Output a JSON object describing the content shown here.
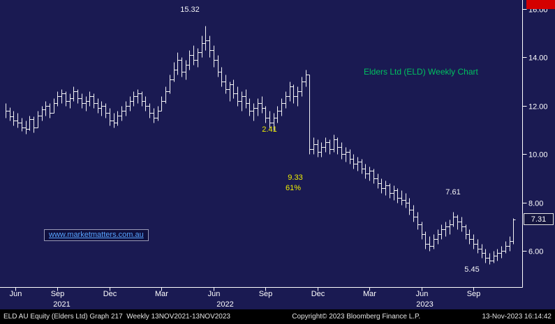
{
  "status_bar": {
    "left_text": "ELD AU Equity (Elders Ltd) Graph 217  Weekly 13NOV2021-13NOV2023",
    "copyright": "Copyright© 2023 Bloomberg Finance L.P.",
    "timestamp": "13-Nov-2023 16:14:42"
  },
  "colors": {
    "background": "#1a1a52",
    "bar_white": "#f2f2f4",
    "axis_white": "#ffffff",
    "annotation_yellow": "#f0f000",
    "title_green": "#00c060",
    "link_blue": "#58a4ff",
    "corner_red": "#d40000",
    "status_bar_black": "#000000"
  },
  "chart_data": {
    "type": "ohlc_bar",
    "title": "Elders Ltd (ELD) Weekly Chart",
    "grid": false,
    "ylim": [
      5.0,
      16.4
    ],
    "frequency": "weekly",
    "date_range": "13NOV2021-13NOV2023",
    "y_axis": {
      "values": [
        16,
        14,
        12,
        10,
        8,
        6
      ],
      "labels": [
        "16.00",
        "14.00",
        "12.00",
        "10.00",
        "8.00",
        "6.00"
      ]
    },
    "x_axis": {
      "months": [
        {
          "label": "Jun",
          "week": 2.4
        },
        {
          "label": "Sep",
          "week": 13
        },
        {
          "label": "Dec",
          "week": 26
        },
        {
          "label": "Mar",
          "week": 39
        },
        {
          "label": "Jun",
          "week": 52
        },
        {
          "label": "Sep",
          "week": 65
        },
        {
          "label": "Dec",
          "week": 78
        },
        {
          "label": "Mar",
          "week": 91
        },
        {
          "label": "Jun",
          "week": 104
        },
        {
          "label": "Sep",
          "week": 117
        }
      ],
      "years": [
        {
          "label": "2021",
          "week": 14
        },
        {
          "label": "2022",
          "week": 54.8
        },
        {
          "label": "2023",
          "week": 104.7
        }
      ]
    },
    "point_labels": {
      "peak_high": "15.32",
      "drop_amount": "2.41",
      "decline_amount": "9.33",
      "decline_percent": "61%",
      "swing_high": "7.61",
      "trough_low": "5.45",
      "last_price": "7.31"
    },
    "watermark": "www.marketmatters.com.au",
    "bars_format": [
      "high",
      "low",
      "close"
    ],
    "bars": [
      [
        12.1,
        11.5,
        11.8
      ],
      [
        11.95,
        11.4,
        11.55
      ],
      [
        11.8,
        11.2,
        11.4
      ],
      [
        11.7,
        11.1,
        11.3
      ],
      [
        11.5,
        10.95,
        11.1
      ],
      [
        11.4,
        10.85,
        11.05
      ],
      [
        11.6,
        11.0,
        11.45
      ],
      [
        11.55,
        10.9,
        11.1
      ],
      [
        11.8,
        11.1,
        11.6
      ],
      [
        12.0,
        11.4,
        11.85
      ],
      [
        12.2,
        11.6,
        12.0
      ],
      [
        12.1,
        11.5,
        11.7
      ],
      [
        12.3,
        11.7,
        12.1
      ],
      [
        12.6,
        12.0,
        12.4
      ],
      [
        12.7,
        12.1,
        12.5
      ],
      [
        12.6,
        12.0,
        12.2
      ],
      [
        12.5,
        11.9,
        12.3
      ],
      [
        12.8,
        12.2,
        12.6
      ],
      [
        12.7,
        12.1,
        12.3
      ],
      [
        12.5,
        11.9,
        12.1
      ],
      [
        12.4,
        11.8,
        12.2
      ],
      [
        12.6,
        12.0,
        12.4
      ],
      [
        12.5,
        11.9,
        12.1
      ],
      [
        12.3,
        11.7,
        11.9
      ],
      [
        12.2,
        11.6,
        12.0
      ],
      [
        12.1,
        11.5,
        11.7
      ],
      [
        11.9,
        11.2,
        11.4
      ],
      [
        11.7,
        11.1,
        11.3
      ],
      [
        11.8,
        11.2,
        11.6
      ],
      [
        12.0,
        11.4,
        11.8
      ],
      [
        12.2,
        11.6,
        12.0
      ],
      [
        12.4,
        11.8,
        12.2
      ],
      [
        12.6,
        12.0,
        12.4
      ],
      [
        12.7,
        12.1,
        12.5
      ],
      [
        12.6,
        12.0,
        12.2
      ],
      [
        12.4,
        11.8,
        12.0
      ],
      [
        12.1,
        11.5,
        11.7
      ],
      [
        11.9,
        11.3,
        11.5
      ],
      [
        12.0,
        11.4,
        11.8
      ],
      [
        12.4,
        11.8,
        12.2
      ],
      [
        12.8,
        12.1,
        12.6
      ],
      [
        13.3,
        12.5,
        13.1
      ],
      [
        13.8,
        13.0,
        13.5
      ],
      [
        14.2,
        13.3,
        13.9
      ],
      [
        14.0,
        13.2,
        13.4
      ],
      [
        13.9,
        13.1,
        13.7
      ],
      [
        14.3,
        13.5,
        14.1
      ],
      [
        14.5,
        13.7,
        13.9
      ],
      [
        14.4,
        13.6,
        14.2
      ],
      [
        14.9,
        14.0,
        14.6
      ],
      [
        15.32,
        14.3,
        14.7
      ],
      [
        14.9,
        14.0,
        14.3
      ],
      [
        14.5,
        13.6,
        13.9
      ],
      [
        14.1,
        13.2,
        13.4
      ],
      [
        13.6,
        12.8,
        13.0
      ],
      [
        13.3,
        12.5,
        12.7
      ],
      [
        13.0,
        12.2,
        12.9
      ],
      [
        13.1,
        12.3,
        12.5
      ],
      [
        12.8,
        12.0,
        12.2
      ],
      [
        12.6,
        11.8,
        12.4
      ],
      [
        12.7,
        11.9,
        12.1
      ],
      [
        12.3,
        11.6,
        11.8
      ],
      [
        12.1,
        11.4,
        11.9
      ],
      [
        12.3,
        11.6,
        12.1
      ],
      [
        12.4,
        11.7,
        11.9
      ],
      [
        12.0,
        11.3,
        11.5
      ],
      [
        11.8,
        11.1,
        11.3
      ],
      [
        11.7,
        11.0,
        11.5
      ],
      [
        12.0,
        11.3,
        11.8
      ],
      [
        12.3,
        11.6,
        12.1
      ],
      [
        12.6,
        11.9,
        12.4
      ],
      [
        13.0,
        12.2,
        12.8
      ],
      [
        12.9,
        12.1,
        12.4
      ],
      [
        12.8,
        12.0,
        12.6
      ],
      [
        13.2,
        12.4,
        13.0
      ],
      [
        13.5,
        12.8,
        13.3
      ],
      [
        13.3,
        10.0,
        10.2
      ],
      [
        10.7,
        10.0,
        10.4
      ],
      [
        10.6,
        9.9,
        10.1
      ],
      [
        10.5,
        9.9,
        10.3
      ],
      [
        10.7,
        10.1,
        10.5
      ],
      [
        10.6,
        10.0,
        10.2
      ],
      [
        10.8,
        10.1,
        10.6
      ],
      [
        10.7,
        10.0,
        10.3
      ],
      [
        10.5,
        9.8,
        10.0
      ],
      [
        10.3,
        9.7,
        10.1
      ],
      [
        10.2,
        9.6,
        9.8
      ],
      [
        10.0,
        9.4,
        9.6
      ],
      [
        9.9,
        9.3,
        9.7
      ],
      [
        9.8,
        9.2,
        9.4
      ],
      [
        9.6,
        9.0,
        9.2
      ],
      [
        9.5,
        8.9,
        9.3
      ],
      [
        9.4,
        8.8,
        9.0
      ],
      [
        9.2,
        8.6,
        8.8
      ],
      [
        9.0,
        8.4,
        8.6
      ],
      [
        8.9,
        8.3,
        8.7
      ],
      [
        8.8,
        8.2,
        8.4
      ],
      [
        8.7,
        8.1,
        8.5
      ],
      [
        8.6,
        8.0,
        8.2
      ],
      [
        8.5,
        7.9,
        8.1
      ],
      [
        8.4,
        7.8,
        8.0
      ],
      [
        8.2,
        7.5,
        7.7
      ],
      [
        7.9,
        7.2,
        7.4
      ],
      [
        7.6,
        6.9,
        7.1
      ],
      [
        7.2,
        6.5,
        6.7
      ],
      [
        6.8,
        6.1,
        6.3
      ],
      [
        6.6,
        6.0,
        6.2
      ],
      [
        6.7,
        6.1,
        6.5
      ],
      [
        6.9,
        6.3,
        6.7
      ],
      [
        7.1,
        6.5,
        6.9
      ],
      [
        7.2,
        6.6,
        7.0
      ],
      [
        7.3,
        6.7,
        7.1
      ],
      [
        7.61,
        7.0,
        7.4
      ],
      [
        7.5,
        6.9,
        7.2
      ],
      [
        7.4,
        6.8,
        7.0
      ],
      [
        7.1,
        6.5,
        6.7
      ],
      [
        6.9,
        6.3,
        6.5
      ],
      [
        6.7,
        6.1,
        6.3
      ],
      [
        6.5,
        5.9,
        6.1
      ],
      [
        6.3,
        5.7,
        5.9
      ],
      [
        6.1,
        5.5,
        5.7
      ],
      [
        5.9,
        5.45,
        5.6
      ],
      [
        6.0,
        5.5,
        5.8
      ],
      [
        6.1,
        5.6,
        5.9
      ],
      [
        6.2,
        5.7,
        6.0
      ],
      [
        6.4,
        5.9,
        6.2
      ],
      [
        6.6,
        6.0,
        6.4
      ],
      [
        7.35,
        6.3,
        7.31
      ]
    ]
  }
}
